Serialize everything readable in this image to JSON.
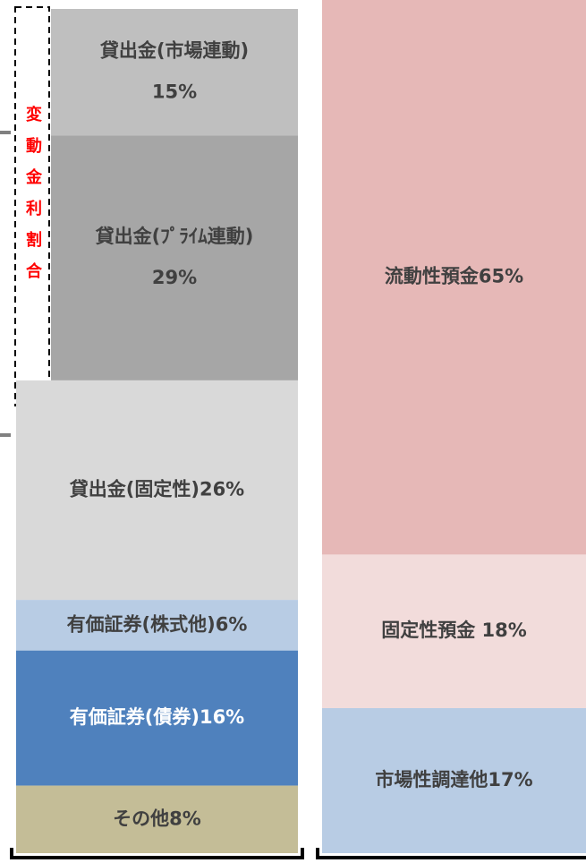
{
  "columns": [
    {
      "segments": [
        {
          "lines": [
            "貸出金(市場連動)",
            "15%"
          ],
          "value": 15,
          "color": "#bfbfbf",
          "text_color": "#404040"
        },
        {
          "lines": [
            "貸出金(ﾌﾟﾗｲﾑ連動)",
            "29%"
          ],
          "value": 29,
          "color": "#a6a6a6",
          "text_color": "#404040"
        },
        {
          "lines": [
            "貸出金(固定性)26%"
          ],
          "value": 26,
          "color": "#d9d9d9",
          "text_color": "#404040"
        },
        {
          "lines": [
            "有価証券(株式他)6%"
          ],
          "value": 6,
          "color": "#b8cce4",
          "text_color": "#404040"
        },
        {
          "lines": [
            "有価証券(債券)16%"
          ],
          "value": 16,
          "color": "#4f81bd",
          "text_color": "#ffffff"
        },
        {
          "lines": [
            "その他8%"
          ],
          "value": 8,
          "color": "#c4bd97",
          "text_color": "#404040"
        }
      ]
    },
    {
      "segments": [
        {
          "lines": [
            "流動性預金65%"
          ],
          "value": 65,
          "color": "#e6b8b7",
          "text_color": "#404040"
        },
        {
          "lines": [
            "固定性預金 18%"
          ],
          "value": 18,
          "color": "#f2dcdb",
          "text_color": "#404040"
        },
        {
          "lines": [
            "市場性調達他17%"
          ],
          "value": 17,
          "color": "#b8cce4",
          "text_color": "#404040"
        }
      ]
    }
  ],
  "annotation": "変動金利割合"
}
